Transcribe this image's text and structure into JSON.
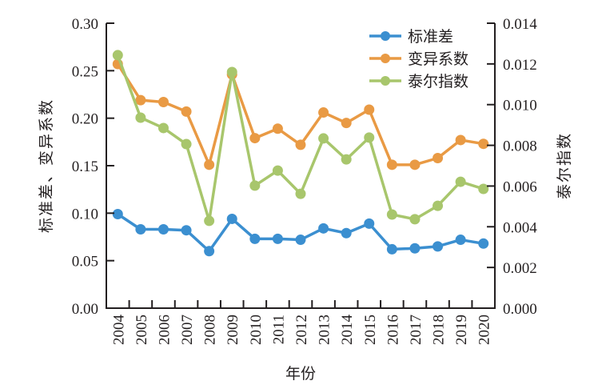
{
  "chart_data": {
    "type": "line",
    "title": "",
    "xlabel": "年份",
    "ylabel_left": "标准差、变异系数",
    "ylabel_right": "泰尔指数",
    "categories": [
      "2004",
      "2005",
      "2006",
      "2007",
      "2008",
      "2009",
      "2010",
      "2011",
      "2012",
      "2013",
      "2014",
      "2015",
      "2016",
      "2017",
      "2018",
      "2019",
      "2020"
    ],
    "ylim_left": [
      0,
      0.3
    ],
    "ylim_right": [
      0,
      0.014
    ],
    "left_ticks": [
      "0.00",
      "0.05",
      "0.10",
      "0.15",
      "0.20",
      "0.25",
      "0.30"
    ],
    "right_ticks": [
      "0.000",
      "0.002",
      "0.004",
      "0.006",
      "0.008",
      "0.010",
      "0.012",
      "0.014"
    ],
    "grid": false,
    "legend_position": "top-right",
    "series": [
      {
        "name": "标准差",
        "axis": "left",
        "color": "#3b8fd0",
        "values": [
          0.099,
          0.083,
          0.083,
          0.082,
          0.06,
          0.094,
          0.073,
          0.073,
          0.072,
          0.084,
          0.079,
          0.089,
          0.062,
          0.063,
          0.065,
          0.072,
          0.068
        ]
      },
      {
        "name": "变异系数",
        "axis": "left",
        "color": "#e99a44",
        "values": [
          0.257,
          0.219,
          0.217,
          0.207,
          0.151,
          0.246,
          0.179,
          0.189,
          0.172,
          0.206,
          0.195,
          0.209,
          0.151,
          0.151,
          0.158,
          0.177,
          0.173
        ]
      },
      {
        "name": "泰尔指数",
        "axis": "right",
        "color": "#a8c66c",
        "values": [
          0.01243,
          0.00936,
          0.00885,
          0.00806,
          0.00429,
          0.0116,
          0.00602,
          0.00676,
          0.00562,
          0.00834,
          0.00731,
          0.00838,
          0.0046,
          0.00437,
          0.00503,
          0.00621,
          0.00586
        ]
      }
    ]
  }
}
